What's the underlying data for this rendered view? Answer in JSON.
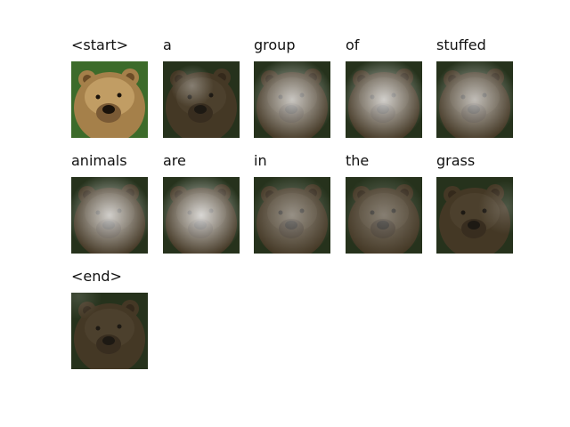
{
  "frames": [
    {
      "word": "<start>",
      "attention": "none",
      "level": 1.0
    },
    {
      "word": "a",
      "attention": "top-center",
      "level": 0.35
    },
    {
      "word": "group",
      "attention": "center",
      "level": 0.75
    },
    {
      "word": "of",
      "attention": "center",
      "level": 0.8
    },
    {
      "word": "stuffed",
      "attention": "center",
      "level": 0.7
    },
    {
      "word": "animals",
      "attention": "center",
      "level": 0.8
    },
    {
      "word": "are",
      "attention": "center",
      "level": 0.85
    },
    {
      "word": "in",
      "attention": "center",
      "level": 0.45
    },
    {
      "word": "the",
      "attention": "center",
      "level": 0.35
    },
    {
      "word": "grass",
      "attention": "edges",
      "level": 0.2
    },
    {
      "word": "<end>",
      "attention": "top-left",
      "level": 0.15
    }
  ],
  "colors": {
    "fur": "#a5804a",
    "fur_light": "#d8b47a",
    "grass": "#3c6b2a",
    "dark": "#1e1c18",
    "attention": "#f2f2f2"
  }
}
